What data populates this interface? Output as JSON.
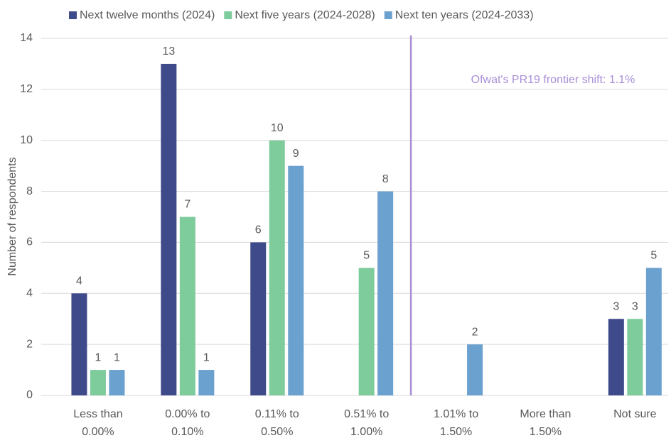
{
  "chart_data": {
    "type": "bar",
    "y_label": "Number of respondents",
    "categories": [
      "Less than 0.00%",
      "0.00% to 0.10%",
      "0.11% to 0.50%",
      "0.51% to 1.00%",
      "1.01% to 1.50%",
      "More than 1.50%",
      "Not sure"
    ],
    "series": [
      {
        "name": "Next twelve months (2024)",
        "color": "#3f4a8a",
        "values": [
          4,
          13,
          6,
          null,
          null,
          null,
          3
        ]
      },
      {
        "name": "Next five years (2024-2028)",
        "color": "#7ecb9c",
        "values": [
          1,
          7,
          10,
          5,
          null,
          null,
          3
        ]
      },
      {
        "name": "Next ten years (2024-2033)",
        "color": "#6aa1cf",
        "values": [
          1,
          1,
          9,
          8,
          2,
          null,
          5
        ]
      }
    ],
    "ylim": [
      0,
      14
    ],
    "yticks": [
      0,
      2,
      4,
      6,
      8,
      10,
      12,
      14
    ],
    "grid": true,
    "annotation": "Ofwat's PR19 frontier shift: 1.1%",
    "annotation_color": "#a98fd6"
  }
}
